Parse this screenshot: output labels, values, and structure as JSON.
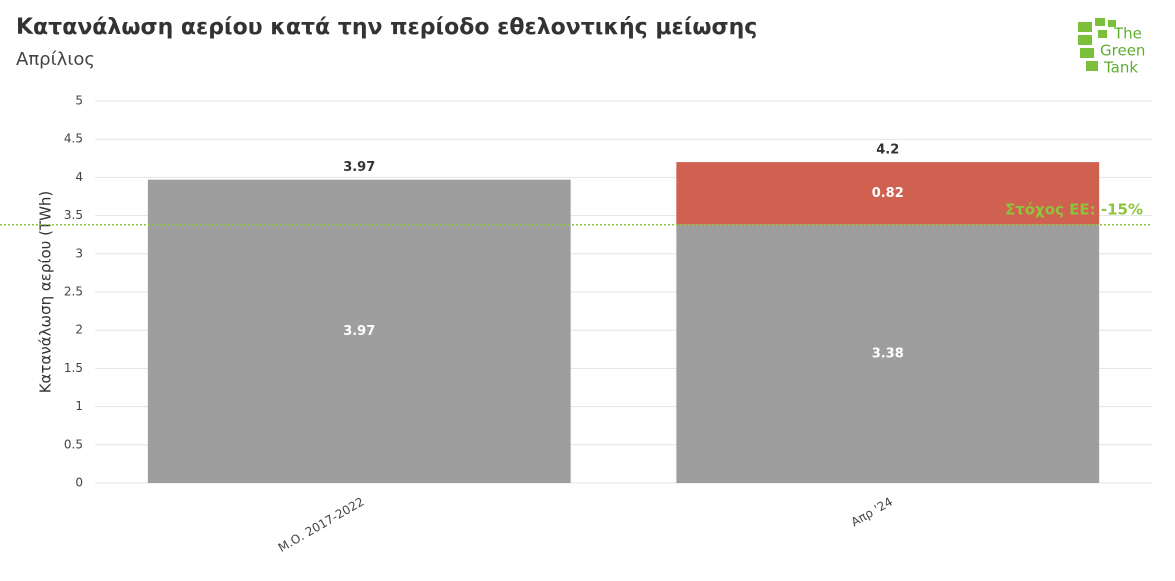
{
  "chart_data": {
    "type": "bar",
    "stacked": true,
    "title": "Κατανάλωση αερίου κατά την περίοδο εθελοντικής μείωσης",
    "subtitle": "Απρίλιος",
    "y_label": "Κατανάλωση αερίου (TWh)",
    "categories": [
      "Μ.Ο. 2017-2022",
      "Απρ '24"
    ],
    "series": [
      {
        "color": "#9e9e9e",
        "values": [
          3.97,
          3.38
        ]
      },
      {
        "color": "#d0604f",
        "values": [
          null,
          0.82
        ]
      }
    ],
    "totals": [
      3.97,
      4.2
    ],
    "target": {
      "value": 3.38,
      "label": "Στόχος ΕΕ: -15%",
      "color": "#8cc43c"
    },
    "ylim": [
      0,
      5
    ],
    "yticks": [
      0,
      0.5,
      1,
      1.5,
      2,
      2.5,
      3,
      3.5,
      4,
      4.5,
      5
    ],
    "grid": true,
    "logo": [
      "The",
      "Green",
      "Tank"
    ]
  }
}
